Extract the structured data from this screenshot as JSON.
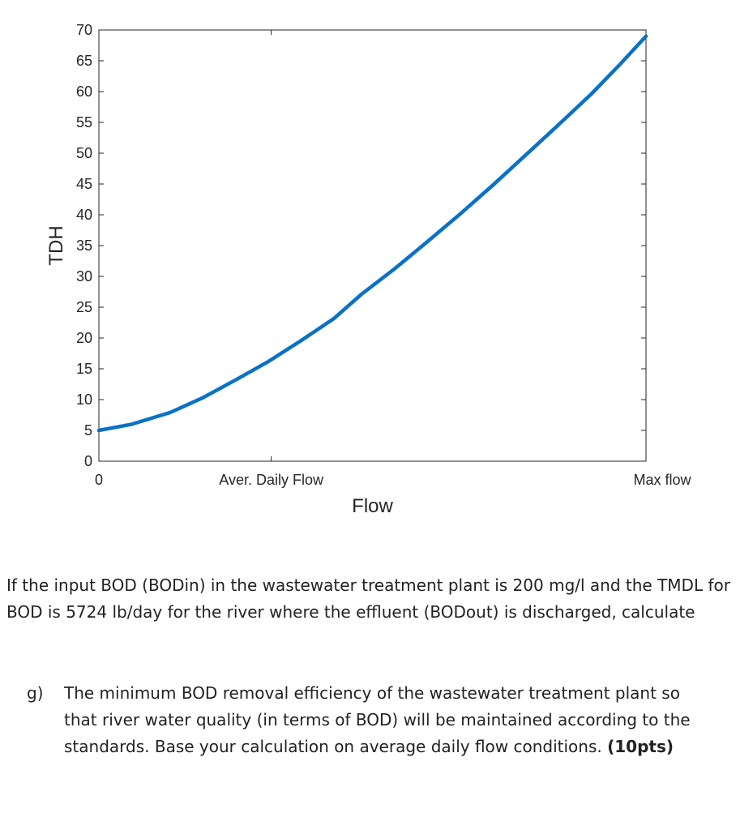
{
  "chart_data": {
    "type": "line",
    "xlabel": "Flow",
    "ylabel": "TDH",
    "ylim": [
      0,
      70
    ],
    "yticks": [
      0,
      5,
      10,
      15,
      20,
      25,
      30,
      35,
      40,
      45,
      50,
      55,
      60,
      65,
      70
    ],
    "xlim": [
      0,
      1
    ],
    "xticks": [
      {
        "value": 0,
        "label": "0"
      },
      {
        "value": 0.315,
        "label": "Aver. Daily Flow"
      },
      {
        "value": 1,
        "label": "Max flow"
      }
    ],
    "grid": false,
    "color": "#0a72c4",
    "series": [
      {
        "x": [
          0,
          0.06,
          0.13,
          0.19,
          0.25,
          0.31,
          0.37,
          0.43,
          0.48,
          0.54,
          0.6,
          0.66,
          0.72,
          0.78,
          0.84,
          0.9,
          0.95,
          1.0
        ],
        "y": [
          5,
          6,
          7.9,
          10.3,
          13.2,
          16.2,
          19.6,
          23.2,
          27.1,
          31.2,
          35.6,
          40.1,
          44.8,
          49.7,
          54.6,
          59.6,
          64.2,
          69
        ]
      }
    ]
  },
  "problem": {
    "intro": "If the input BOD (BODin) in the wastewater treatment plant is 200 mg/l and the TMDL for BOD is 5724 lb/day for the river where the effluent (BODout) is discharged, calculate",
    "question_letter": "g)",
    "question_text": "The minimum BOD removal efficiency of the wastewater treatment plant so that river water quality (in terms of BOD) will be maintained according to the standards. Base your calculation on average daily flow conditions.",
    "question_points": "(10pts)"
  }
}
